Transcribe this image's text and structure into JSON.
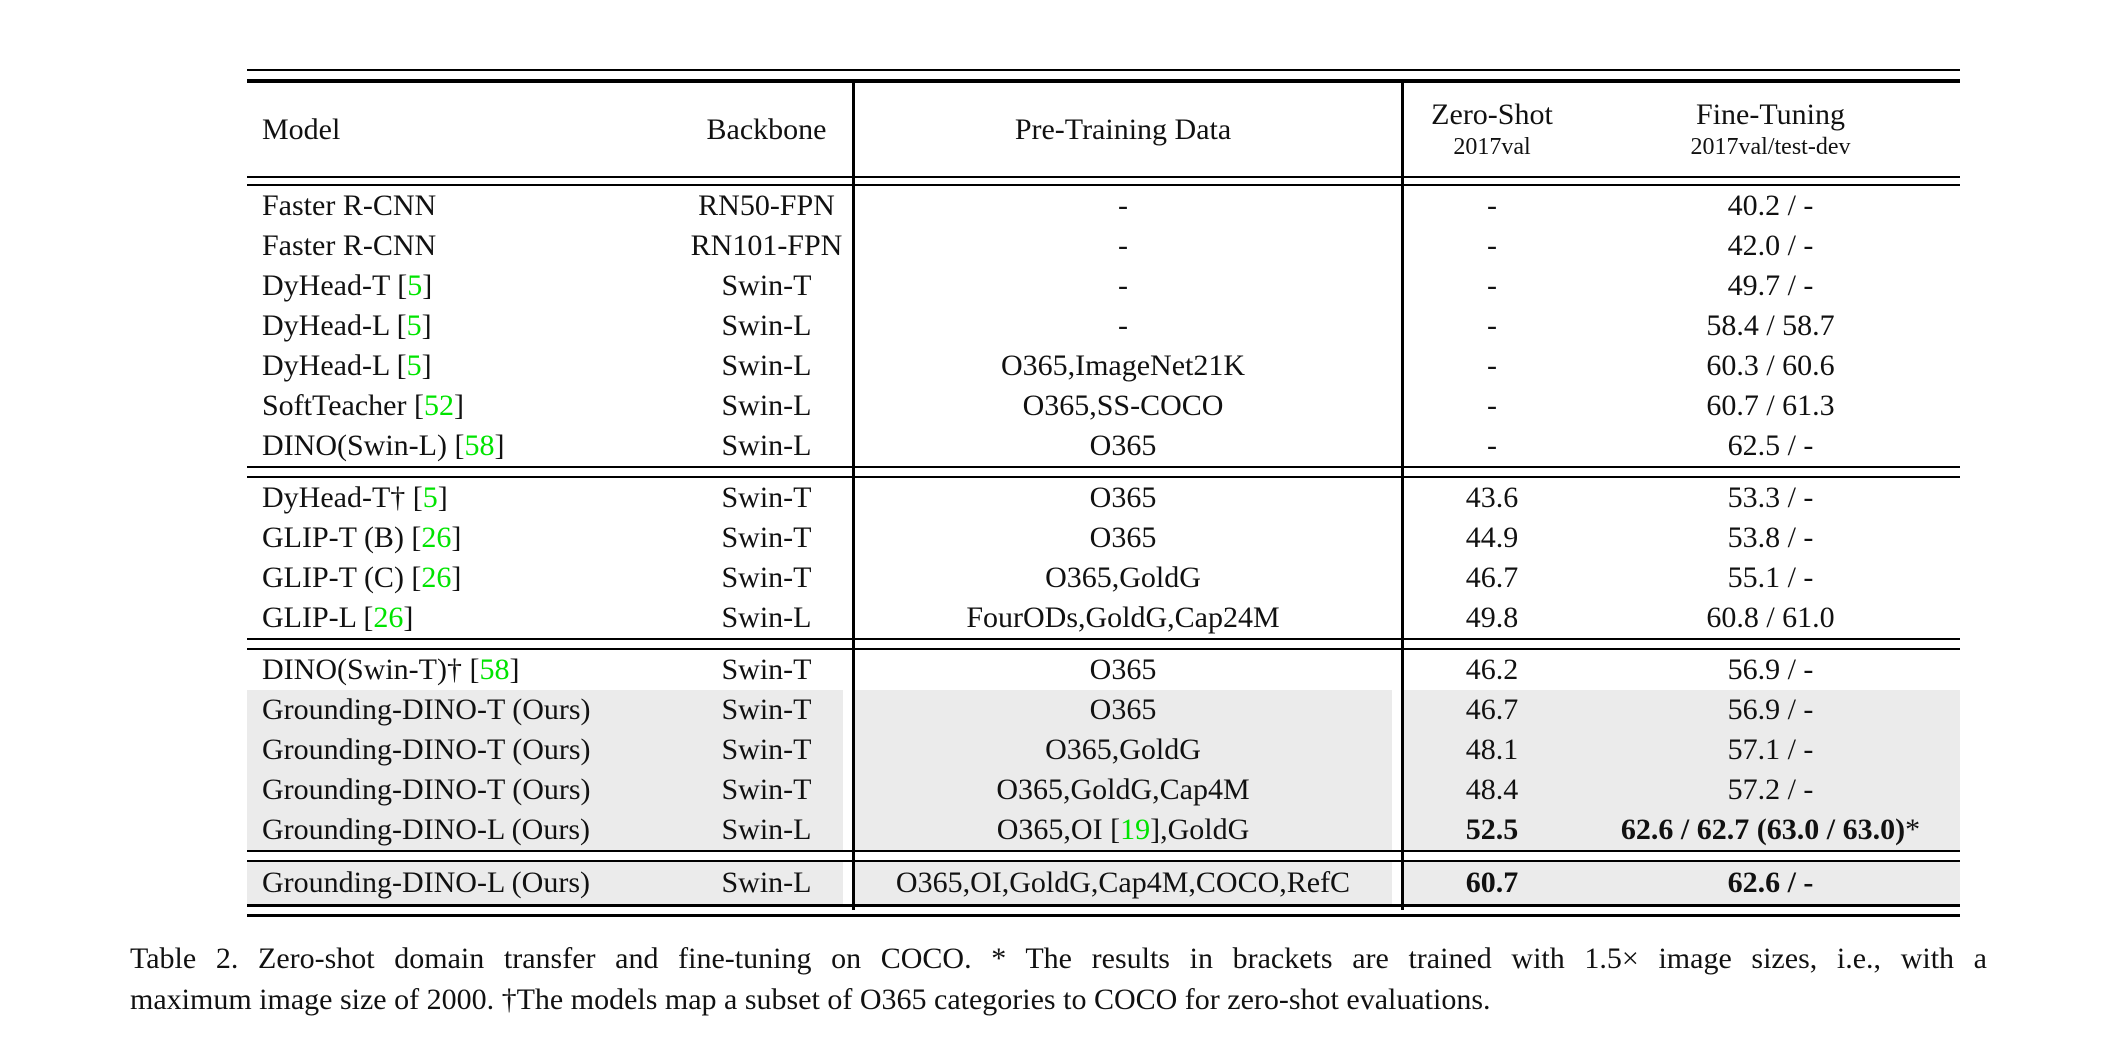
{
  "colors": {
    "citation_green": "#00e400",
    "row_shade": "#ebebeb",
    "rule_black": "#000000"
  },
  "table": {
    "columns": [
      {
        "label": "Model"
      },
      {
        "label": "Backbone"
      },
      {
        "label": "Pre-Training Data"
      },
      {
        "label": "Zero-Shot",
        "sublabel": "2017val"
      },
      {
        "label": "Fine-Tuning",
        "sublabel": "2017val/test-dev"
      }
    ],
    "groups": [
      {
        "rows": [
          {
            "model": "Faster R-CNN",
            "backbone": "RN50-FPN",
            "pretrain": "-",
            "zeroshot": "-",
            "finetune": "40.2 / -"
          },
          {
            "model": "Faster R-CNN",
            "backbone": "RN101-FPN",
            "pretrain": "-",
            "zeroshot": "-",
            "finetune": "42.0 / -"
          },
          {
            "model": "DyHead-T [5]",
            "backbone": "Swin-T",
            "pretrain": "-",
            "zeroshot": "-",
            "finetune": "49.7 / -"
          },
          {
            "model": "DyHead-L [5]",
            "backbone": "Swin-L",
            "pretrain": "-",
            "zeroshot": "-",
            "finetune": "58.4 / 58.7"
          },
          {
            "model": "DyHead-L [5]",
            "backbone": "Swin-L",
            "pretrain": "O365,ImageNet21K",
            "zeroshot": "-",
            "finetune": "60.3 / 60.6"
          },
          {
            "model": "SoftTeacher [52]",
            "backbone": "Swin-L",
            "pretrain": "O365,SS-COCO",
            "zeroshot": "-",
            "finetune": "60.7 / 61.3"
          },
          {
            "model": "DINO(Swin-L) [58]",
            "backbone": "Swin-L",
            "pretrain": "O365",
            "zeroshot": "-",
            "finetune": "62.5 / -"
          }
        ]
      },
      {
        "rows": [
          {
            "model": "DyHead-T† [5]",
            "backbone": "Swin-T",
            "pretrain": "O365",
            "zeroshot": "43.6",
            "finetune": "53.3 / -"
          },
          {
            "model": "GLIP-T (B) [26]",
            "backbone": "Swin-T",
            "pretrain": "O365",
            "zeroshot": "44.9",
            "finetune": "53.8 / -"
          },
          {
            "model": "GLIP-T (C) [26]",
            "backbone": "Swin-T",
            "pretrain": "O365,GoldG",
            "zeroshot": "46.7",
            "finetune": "55.1 / -"
          },
          {
            "model": "GLIP-L [26]",
            "backbone": "Swin-L",
            "pretrain": "FourODs,GoldG,Cap24M",
            "zeroshot": "49.8",
            "finetune": "60.8 / 61.0"
          }
        ]
      },
      {
        "rows": [
          {
            "model": "DINO(Swin-T)† [58]",
            "backbone": "Swin-T",
            "pretrain": "O365",
            "zeroshot": "46.2",
            "finetune": "56.9 / -"
          },
          {
            "model": "Grounding-DINO-T (Ours)",
            "backbone": "Swin-T",
            "pretrain": "O365",
            "zeroshot": "46.7",
            "finetune": "56.9 / -",
            "shaded": true
          },
          {
            "model": "Grounding-DINO-T (Ours)",
            "backbone": "Swin-T",
            "pretrain": "O365,GoldG",
            "zeroshot": "48.1",
            "finetune": "57.1 / -",
            "shaded": true
          },
          {
            "model": "Grounding-DINO-T (Ours)",
            "backbone": "Swin-T",
            "pretrain": "O365,GoldG,Cap4M",
            "zeroshot": "48.4",
            "finetune": "57.2 / -",
            "shaded": true
          },
          {
            "model": "Grounding-DINO-L (Ours)",
            "backbone": "Swin-L",
            "pretrain": "O365,OI [19],GoldG",
            "zeroshot": "52.5",
            "finetune": "62.6 / 62.7 (63.0 / 63.0)*",
            "shaded": true,
            "bold_zeroshot": true,
            "bold_finetune": true
          }
        ]
      },
      {
        "rows": [
          {
            "model": "Grounding-DINO-L (Ours)",
            "backbone": "Swin-L",
            "pretrain": "O365,OI,GoldG,Cap4M,COCO,RefC",
            "zeroshot": "60.7",
            "finetune": "62.6 / -",
            "shaded": true,
            "bold_zeroshot": true,
            "bold_finetune": true,
            "tall": true
          }
        ]
      }
    ]
  },
  "caption": {
    "line1": "Table 2.  Zero-shot domain transfer and fine-tuning on COCO. * The results in brackets are trained with 1.5× image sizes, i.e., with a",
    "line2": "maximum image size of 2000. †The models map a subset of O365 categories to COCO for zero-shot evaluations."
  }
}
